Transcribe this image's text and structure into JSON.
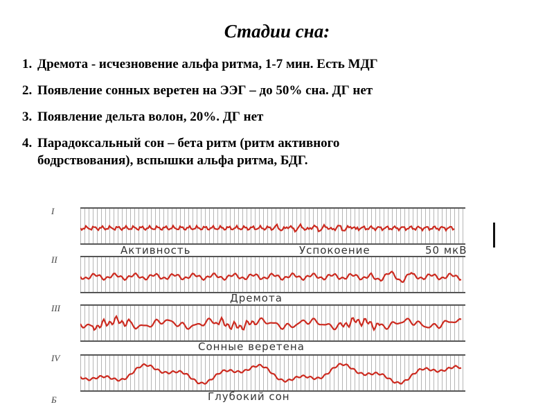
{
  "slide": {
    "title": "Стадии сна:",
    "items": [
      {
        "num": "1.",
        "text": "Дремота - исчезновение альфа ритма, 1-7 мин. Есть МДГ"
      },
      {
        "num": "2.",
        "text": "Появление сонных веретен на ЭЭГ – до 50%  сна. ДГ нет"
      },
      {
        "num": "3.",
        "text": "Появление дельта волон, 20%. ДГ нет"
      },
      {
        "num": "4.",
        "text": "Парадоксальный сон – бета ритм (ритм активного",
        "cont": "бодрствования), вспышки альфа ритма, БДГ."
      }
    ]
  },
  "figure": {
    "wave_color": "#cc2a1f",
    "strip_labels": [
      "I",
      "II",
      "III",
      "IV"
    ],
    "bottom_label": "Б",
    "caption_activity": "Активность",
    "caption_calm": "Успокоение",
    "scale_label": "50 мкВ",
    "caption_drowsiness": "Дремота",
    "caption_spindles": "Сонные веретена",
    "caption_deep": "Глубокий сон"
  }
}
